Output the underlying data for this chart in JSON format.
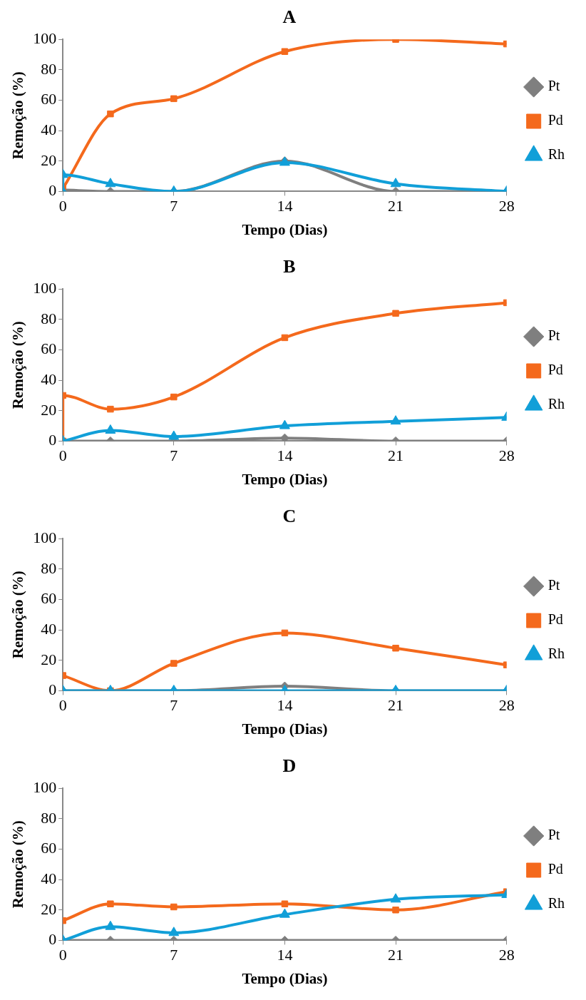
{
  "chart_data": [
    {
      "type": "line",
      "title": "A",
      "xlabel": "Tempo (Dias)",
      "ylabel": "Remoção (%)",
      "xlim": [
        0,
        28
      ],
      "xticks": [
        0,
        7,
        14,
        21,
        28
      ],
      "ylim": [
        0,
        100
      ],
      "yticks": [
        0,
        20,
        40,
        60,
        80,
        100
      ],
      "grid": false,
      "legend": "right",
      "series": [
        {
          "name": "Pt",
          "color": "#7f7f7f",
          "marker": "diamond",
          "x": [
            0,
            3,
            7,
            14,
            21,
            28
          ],
          "values": [
            1,
            0,
            0,
            20,
            0,
            0
          ]
        },
        {
          "name": "Pd",
          "color": "#f4691c",
          "marker": "square",
          "x": [
            0,
            3,
            7,
            14,
            21,
            28
          ],
          "values": [
            2,
            51,
            61,
            92,
            100,
            97
          ]
        },
        {
          "name": "Rh",
          "color": "#119fd8",
          "marker": "triangle",
          "x": [
            0,
            0,
            3,
            7,
            14,
            21,
            28
          ],
          "values": [
            0,
            11,
            5,
            0,
            19,
            5,
            0
          ]
        }
      ]
    },
    {
      "type": "line",
      "title": "B",
      "xlabel": "Tempo (Dias)",
      "ylabel": "Remoção (%)",
      "xlim": [
        0,
        28
      ],
      "xticks": [
        0,
        7,
        14,
        21,
        28
      ],
      "ylim": [
        0,
        100
      ],
      "yticks": [
        0,
        20,
        40,
        60,
        80,
        100
      ],
      "grid": false,
      "legend": "right",
      "series": [
        {
          "name": "Pt",
          "color": "#7f7f7f",
          "marker": "diamond",
          "x": [
            0,
            3,
            7,
            14,
            21,
            28
          ],
          "values": [
            0,
            0,
            0,
            2,
            0,
            0
          ]
        },
        {
          "name": "Pd",
          "color": "#f4691c",
          "marker": "square",
          "x": [
            0,
            0,
            3,
            7,
            14,
            21,
            28
          ],
          "values": [
            0,
            30,
            21,
            29,
            68,
            84,
            91
          ]
        },
        {
          "name": "Rh",
          "color": "#119fd8",
          "marker": "triangle",
          "x": [
            0,
            3,
            7,
            14,
            21,
            28
          ],
          "values": [
            0,
            7,
            3,
            10,
            13,
            15.5
          ]
        }
      ]
    },
    {
      "type": "line",
      "title": "C",
      "xlabel": "Tempo (Dias)",
      "ylabel": "Remoção (%)",
      "xlim": [
        0,
        28
      ],
      "xticks": [
        0,
        7,
        14,
        21,
        28
      ],
      "ylim": [
        0,
        100
      ],
      "yticks": [
        0,
        20,
        40,
        60,
        80,
        100
      ],
      "grid": false,
      "legend": "right",
      "series": [
        {
          "name": "Pt",
          "color": "#7f7f7f",
          "marker": "diamond",
          "x": [
            0,
            3,
            7,
            14,
            21,
            28
          ],
          "values": [
            0,
            0,
            0,
            3,
            0,
            0
          ]
        },
        {
          "name": "Pd",
          "color": "#f4691c",
          "marker": "square",
          "x": [
            0,
            3,
            7,
            14,
            21,
            28
          ],
          "values": [
            10,
            0,
            18,
            38,
            28,
            17
          ]
        },
        {
          "name": "Rh",
          "color": "#119fd8",
          "marker": "triangle",
          "x": [
            0,
            3,
            7,
            14,
            21,
            28
          ],
          "values": [
            0,
            0,
            0,
            0,
            0,
            0
          ]
        }
      ]
    },
    {
      "type": "line",
      "title": "D",
      "xlabel": "Tempo (Dias)",
      "ylabel": "Remoção (%)",
      "xlim": [
        0,
        28
      ],
      "xticks": [
        0,
        7,
        14,
        21,
        28
      ],
      "ylim": [
        0,
        100
      ],
      "yticks": [
        0,
        20,
        40,
        60,
        80,
        100
      ],
      "grid": false,
      "legend": "right",
      "series": [
        {
          "name": "Pt",
          "color": "#7f7f7f",
          "marker": "diamond",
          "x": [
            0,
            3,
            7,
            14,
            21,
            28
          ],
          "values": [
            0,
            0,
            0,
            0,
            0,
            0
          ]
        },
        {
          "name": "Pd",
          "color": "#f4691c",
          "marker": "square",
          "x": [
            0,
            3,
            7,
            14,
            21,
            28
          ],
          "values": [
            13,
            24,
            22,
            24,
            20,
            32
          ]
        },
        {
          "name": "Rh",
          "color": "#119fd8",
          "marker": "triangle",
          "x": [
            0,
            3,
            7,
            14,
            21,
            28
          ],
          "values": [
            0,
            9,
            5,
            17,
            27,
            30
          ]
        }
      ]
    }
  ]
}
